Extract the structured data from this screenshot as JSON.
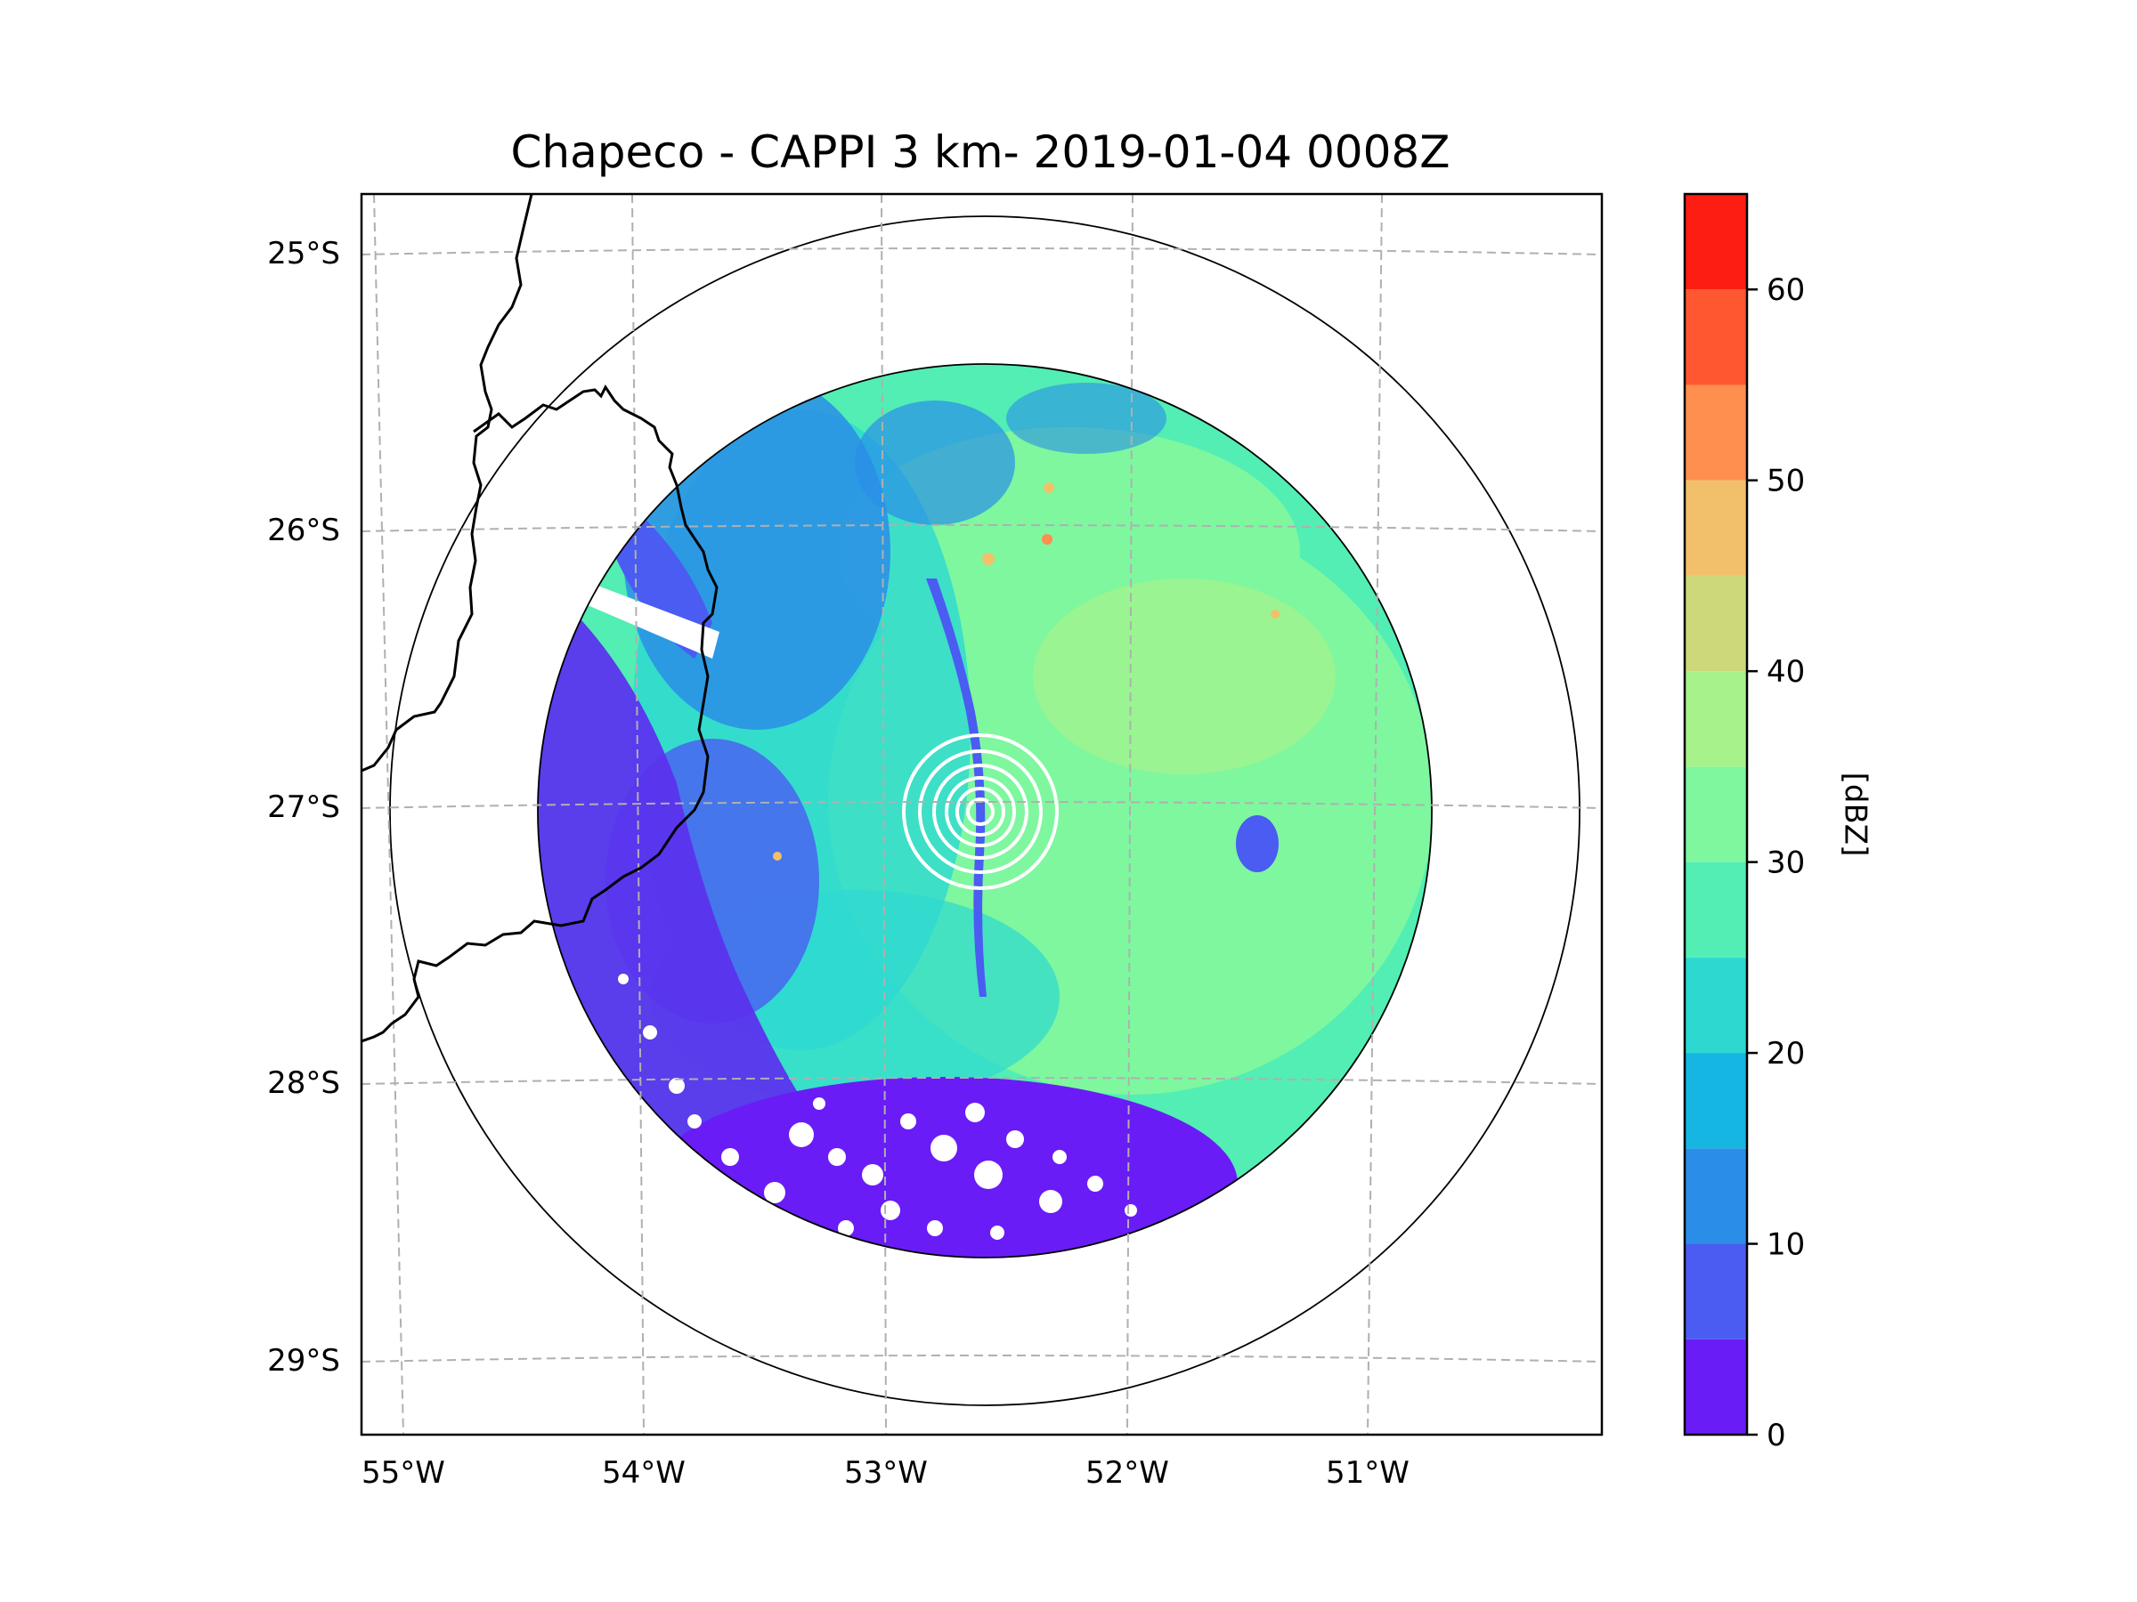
{
  "title": "Chapeco - CAPPI 3 km- 2019-01-04 0008Z",
  "map": {
    "latitude_labels": [
      "25°S",
      "26°S",
      "27°S",
      "28°S",
      "29°S"
    ],
    "longitude_labels": [
      "55°W",
      "54°W",
      "53°W",
      "52°W",
      "51°W"
    ],
    "gridline_style": "dashed grey",
    "range_rings": [
      "inner radar coverage circle",
      "outer range circle"
    ]
  },
  "colorbar": {
    "label": "[dBZ]",
    "tick_labels": [
      "0",
      "10",
      "20",
      "30",
      "40",
      "50",
      "60"
    ],
    "min": 0,
    "max": 65,
    "step": 5,
    "colors": [
      "#6a1cf6",
      "#4a5cf2",
      "#2a8ee8",
      "#15b6e2",
      "#2dd8d1",
      "#52eeb4",
      "#7ef79f",
      "#a7f28b",
      "#ccd87a",
      "#f2c06b",
      "#fe8f4f",
      "#ff5730",
      "#fe1d12"
    ]
  },
  "reflectivity_palette": {
    "blue_clutter": "#5b33ee",
    "light_blue": "#2a8ee8",
    "cyan": "#2dd8d1",
    "green": "#7ef79f",
    "lime": "#a7f28b"
  }
}
